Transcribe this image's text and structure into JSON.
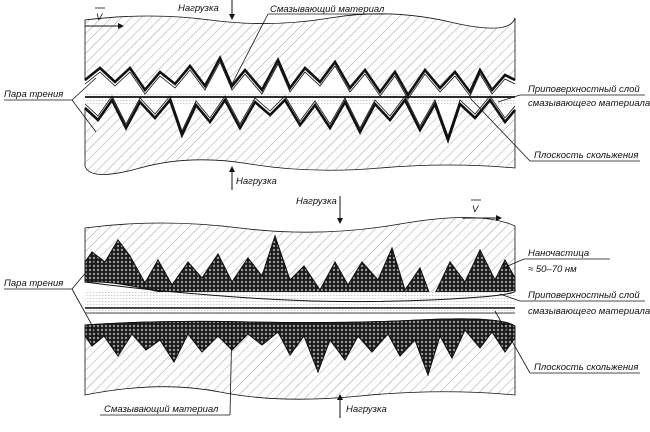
{
  "labels": {
    "top_load": "Нагрузка",
    "top_lubricant": "Смазывающий материал",
    "top_velocity": "V",
    "top_friction_pair": "Пара трения",
    "top_near_surface_line1": "Приповерхностный слой",
    "top_near_surface_line2": "смазывающего материала",
    "top_sliding_plane": "Плоскость скольжения",
    "top_bottom_load": "Нагрузка",
    "bottom_top_load": "Нагрузка",
    "bottom_velocity": "V",
    "bottom_friction_pair": "Пара трения",
    "nanoparticles_line1": "Наночастица",
    "nanoparticles_line2": "≈ 50–70 нм",
    "bottom_near_surface_line1": "Приповерхностный слой",
    "bottom_near_surface_line2": "смазывающего материала",
    "bottom_sliding_plane": "Плоскость скольжения",
    "bottom_lubricant": "Смазывающий материал",
    "bottom_bottom_load": "Нагрузка"
  },
  "colors": {
    "ink": "#111111",
    "hatch": "#777777",
    "lubricant_fill": "#ffffff",
    "nanoparticle_fill": "#222222"
  }
}
